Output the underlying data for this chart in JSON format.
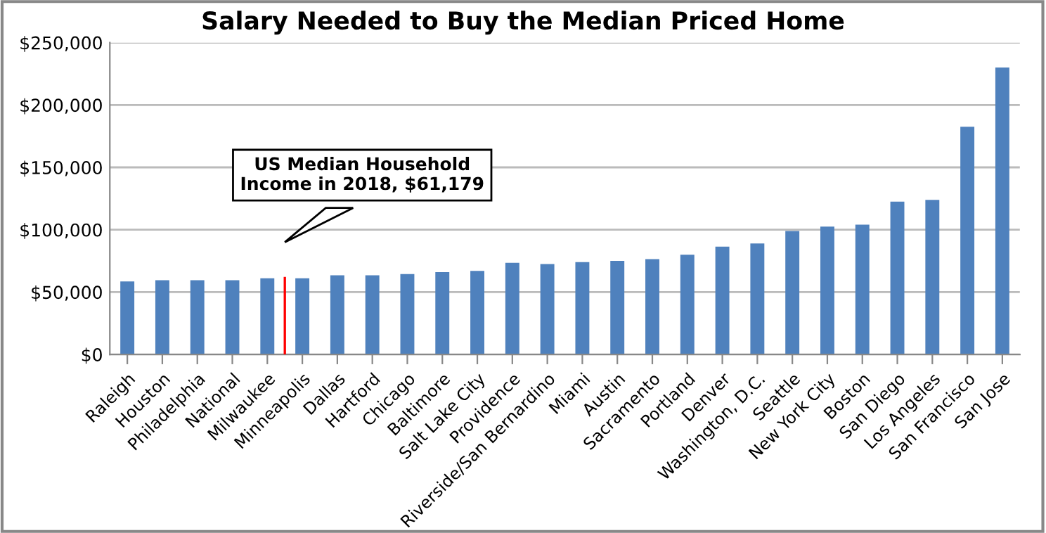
{
  "chart_data": {
    "type": "bar",
    "title": "Salary Needed to Buy the Median Priced Home",
    "categories": [
      "Raleigh",
      "Houston",
      "Philadelphia",
      "National",
      "Milwaukee",
      "Minneapolis",
      "Dallas",
      "Hartford",
      "Chicago",
      "Baltimore",
      "Salt Lake City",
      "Providence",
      "Riverside/San Bernardino",
      "Miami",
      "Austin",
      "Sacramento",
      "Portland",
      "Denver",
      "Washington, D.C.",
      "Seattle",
      "New York City",
      "Boston",
      "San Diego",
      "Los Angeles",
      "San Francisco",
      "San Jose"
    ],
    "values": [
      58500,
      59500,
      59500,
      59500,
      61000,
      61000,
      63500,
      63500,
      64500,
      66000,
      67000,
      73500,
      72500,
      74000,
      75000,
      76500,
      80000,
      86500,
      89000,
      99000,
      102500,
      104000,
      122500,
      124000,
      182500,
      230000
    ],
    "color": "#4f81bd",
    "ylim": [
      0,
      250000
    ],
    "yticks": [
      {
        "value": 0,
        "label": "$0"
      },
      {
        "value": 50000,
        "label": "$50,000"
      },
      {
        "value": 100000,
        "label": "$100,000"
      },
      {
        "value": 150000,
        "label": "$150,000"
      },
      {
        "value": 200000,
        "label": "$200,000"
      },
      {
        "value": 250000,
        "label": "$250,000"
      }
    ],
    "grid": "y",
    "legend": false,
    "annotations": [
      "US Median Household\nIncome in 2018, $61,179"
    ]
  }
}
